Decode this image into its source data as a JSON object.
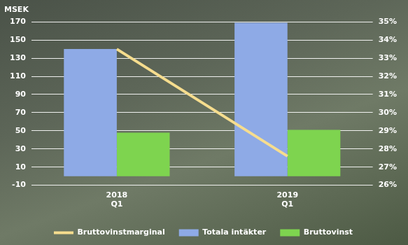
{
  "chart_data": {
    "type": "bar",
    "ylabel": "MSEK",
    "categories": [
      "2018 Q1",
      "2019 Q1"
    ],
    "series": [
      {
        "name": "Totala intäkter",
        "color": "#8eaae6",
        "type": "bar",
        "values": [
          140,
          169
        ]
      },
      {
        "name": "Bruttovinst",
        "color": "#7ed44f",
        "type": "bar",
        "values": [
          48,
          51
        ]
      },
      {
        "name": "Bruttovinstmarginal",
        "color": "#f6dd8e",
        "type": "line",
        "axis": "y2",
        "values": [
          33.5,
          27.6
        ]
      }
    ],
    "ylim": [
      -10,
      170
    ],
    "yticks": [
      -10,
      10,
      30,
      50,
      70,
      90,
      110,
      130,
      150,
      170
    ],
    "y2lim": [
      26,
      35
    ],
    "y2ticks": [
      {
        "value": 26,
        "label": "26%"
      },
      {
        "value": 27,
        "label": "27%"
      },
      {
        "value": 28,
        "label": "28%"
      },
      {
        "value": 29,
        "label": "29%"
      },
      {
        "value": 30,
        "label": "30%"
      },
      {
        "value": 31,
        "label": "31%"
      },
      {
        "value": 32,
        "label": "32%"
      },
      {
        "value": 33,
        "label": "33%"
      },
      {
        "value": 34,
        "label": "34%"
      },
      {
        "value": 35,
        "label": "35%"
      }
    ],
    "grid": true,
    "legend": "bottom"
  }
}
